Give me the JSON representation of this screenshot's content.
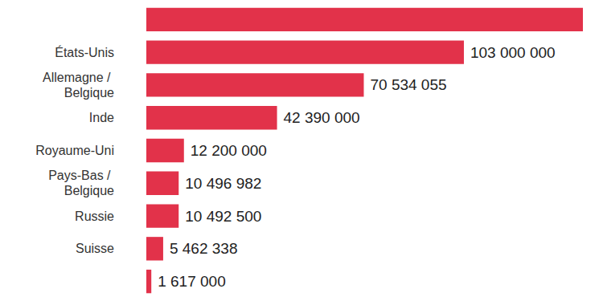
{
  "chart_data": {
    "type": "bar",
    "orientation": "horizontal",
    "categories": [
      null,
      "États-Unis",
      "Allemagne / Belgique",
      "Inde",
      "Royaume-Uni",
      "Pays-Bas / Belgique",
      "Russie",
      "Suisse",
      null
    ],
    "values": [
      141600000,
      103000000,
      70534055,
      42390000,
      12200000,
      10496982,
      10492500,
      5462338,
      1617000
    ],
    "value_labels": [
      null,
      "103 000 000",
      "70 534 055",
      "42 390 000",
      "12 200 000",
      "10 496 982",
      "10 492 500",
      "5 462 338",
      "1 617 000"
    ],
    "color": "#e2324a",
    "xlim": [
      0,
      141600000
    ],
    "grid": false,
    "tick_labels": "y",
    "data_labels": true
  }
}
